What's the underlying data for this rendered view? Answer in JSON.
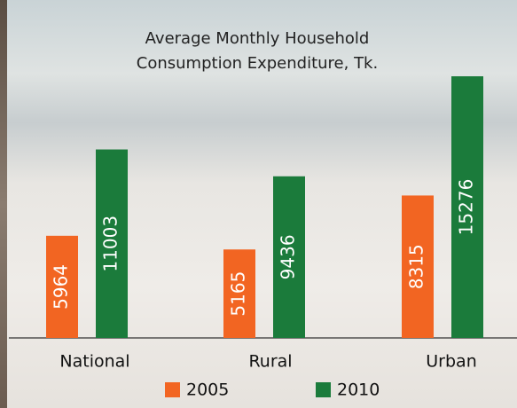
{
  "chart_data": {
    "type": "bar",
    "title": "Average Monthly Household Consumption Expenditure, Tk.",
    "categories": [
      "National",
      "Rural",
      "Urban"
    ],
    "series": [
      {
        "name": "2005",
        "color": "#f26522",
        "values": [
          5964,
          5165,
          8315
        ]
      },
      {
        "name": "2010",
        "color": "#1b7b3b",
        "values": [
          11003,
          9436,
          15276
        ]
      }
    ]
  }
}
